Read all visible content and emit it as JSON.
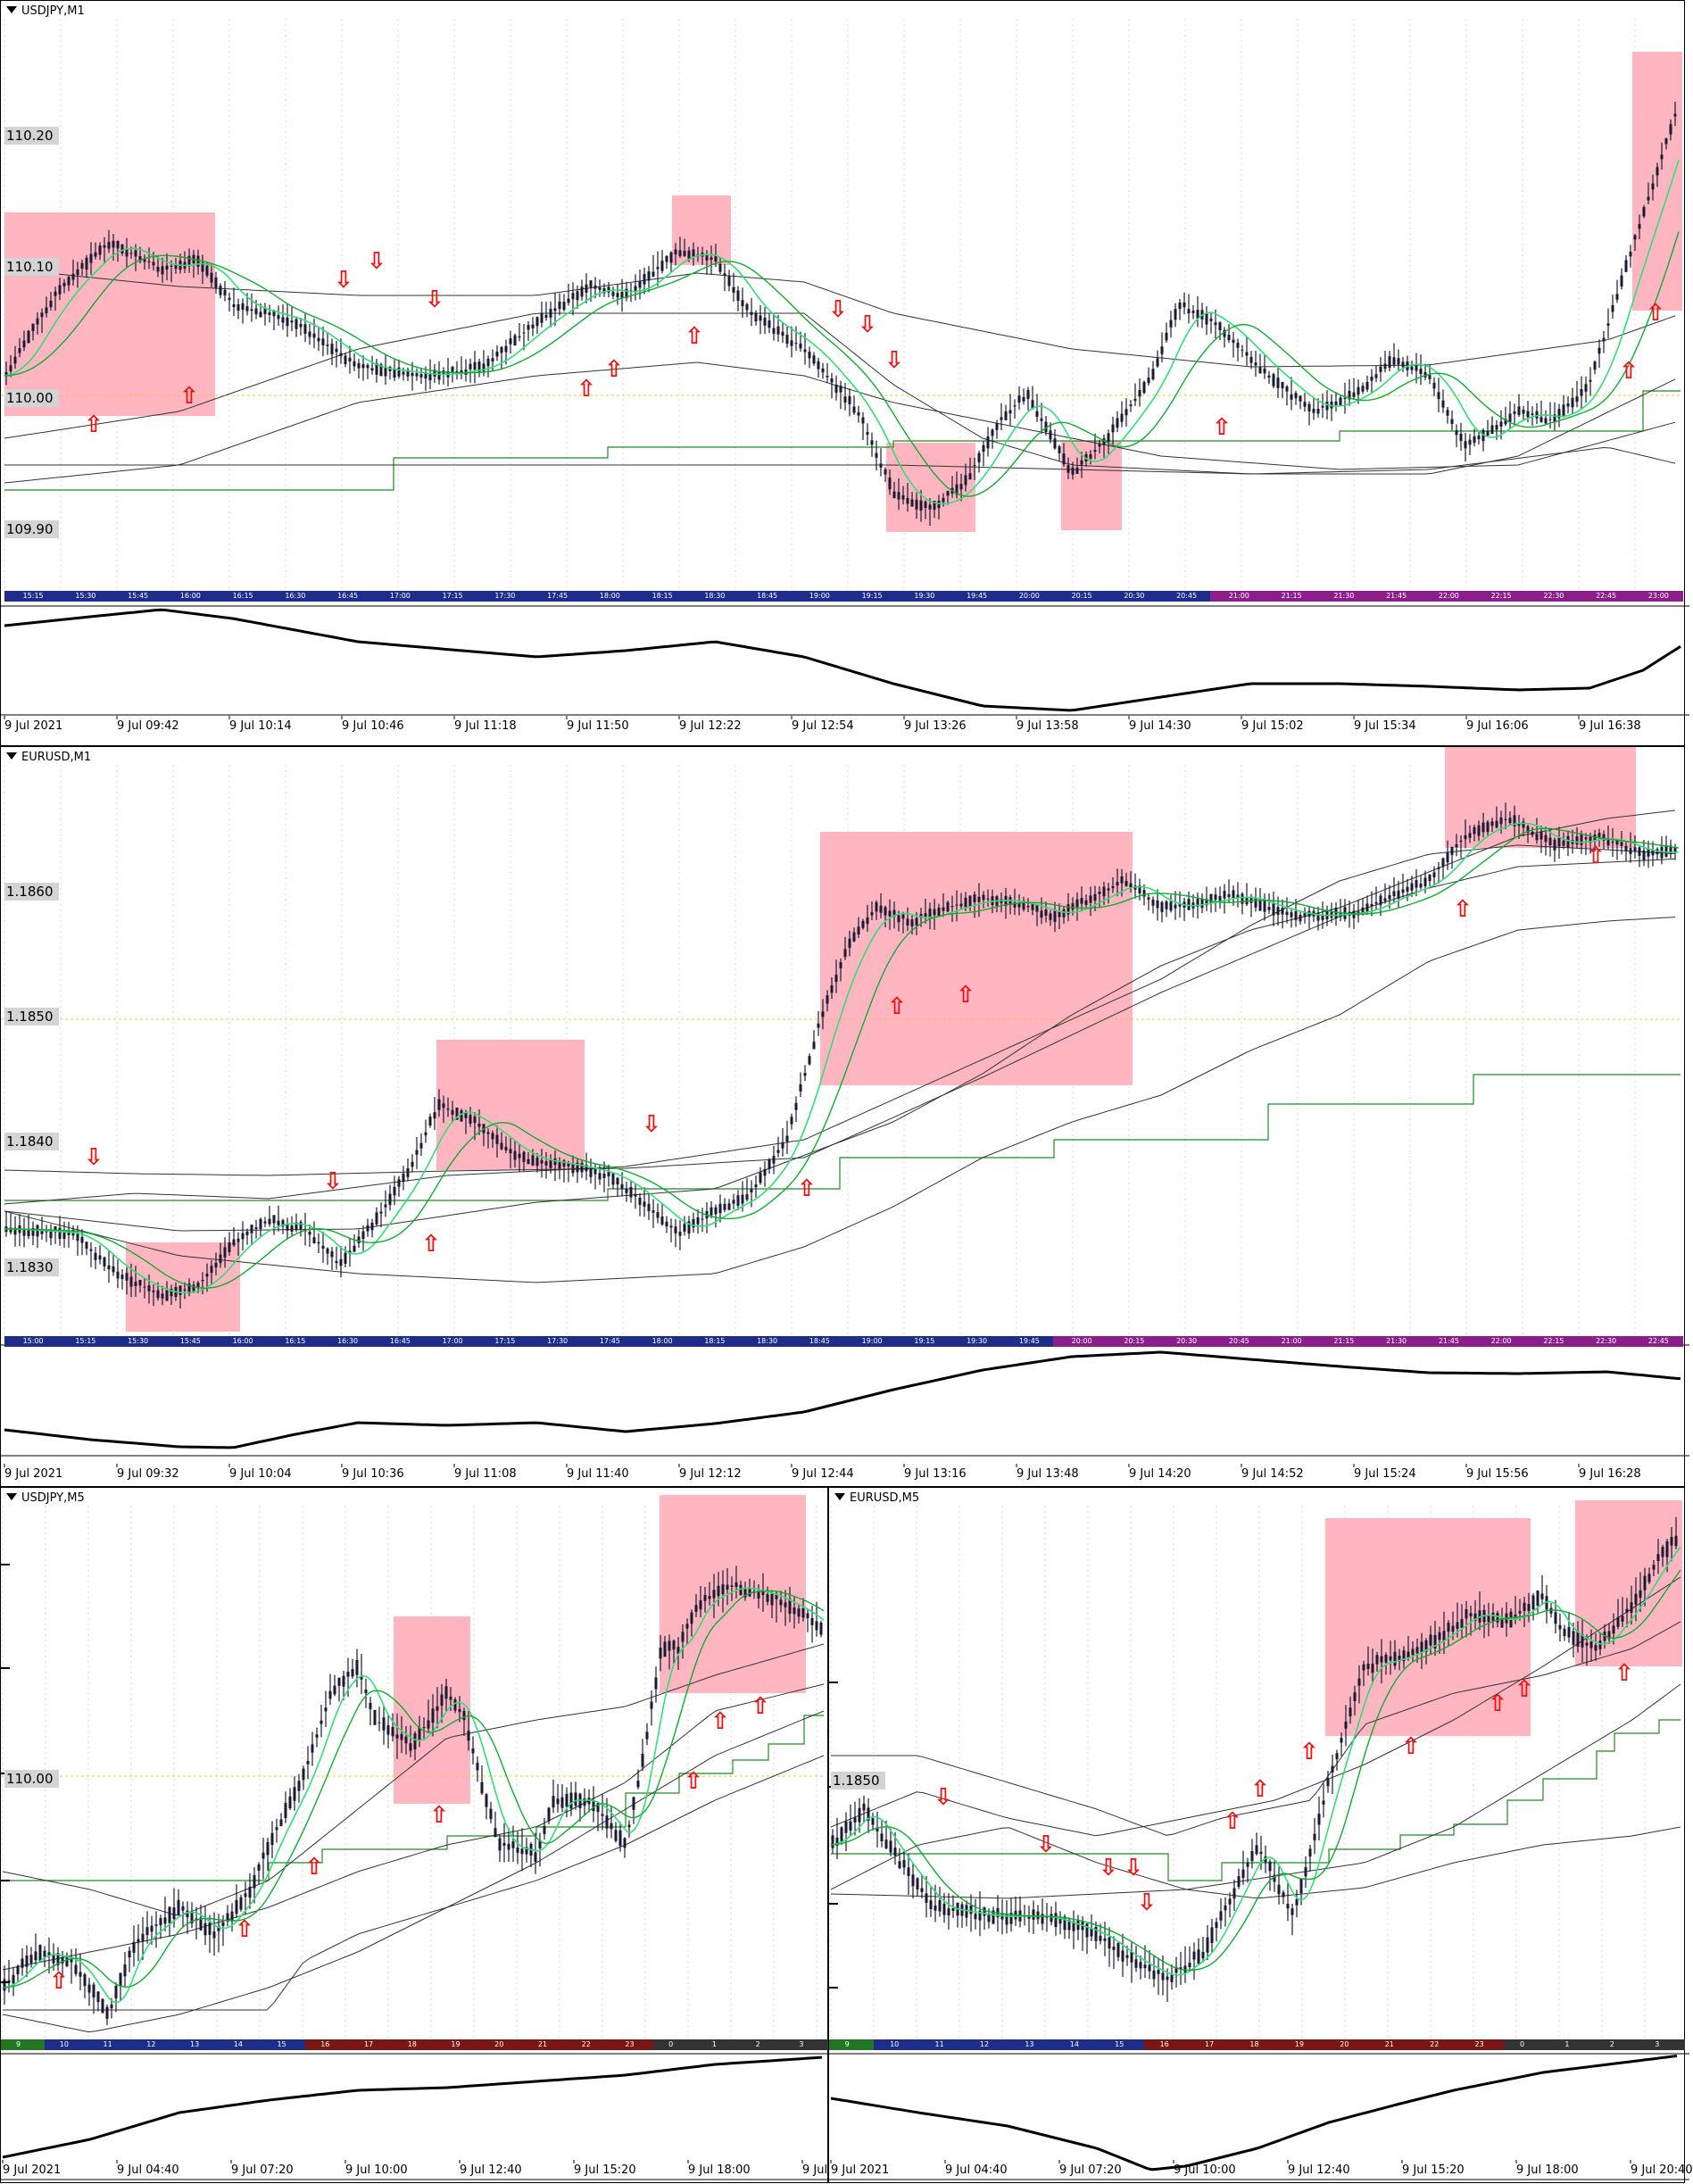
{
  "panels": [
    {
      "title": "USDJPY,M1",
      "price_labels": [
        "110.20",
        "110.10",
        "110.00",
        "109.90"
      ],
      "hour_ticks": [
        "15:15",
        "15:30",
        "15:45",
        "16:00",
        "16:15",
        "16:30",
        "16:45",
        "17:00",
        "17:15",
        "17:30",
        "17:45",
        "18:00",
        "18:15",
        "18:30",
        "18:45",
        "19:00",
        "19:15",
        "19:30",
        "19:45",
        "20:00",
        "20:15",
        "20:30",
        "20:45",
        "21:00",
        "21:15",
        "21:30",
        "21:45",
        "22:00",
        "22:15",
        "22:30",
        "22:45",
        "23:00"
      ],
      "x_labels": [
        "9 Jul 2021",
        "9 Jul 09:42",
        "9 Jul 10:14",
        "9 Jul 10:46",
        "9 Jul 11:18",
        "9 Jul 11:50",
        "9 Jul 12:22",
        "9 Jul 12:54",
        "9 Jul 13:26",
        "9 Jul 13:58",
        "9 Jul 14:30",
        "9 Jul 15:02",
        "9 Jul 15:34",
        "9 Jul 16:06",
        "9 Jul 16:38"
      ]
    },
    {
      "title": "EURUSD,M1",
      "price_labels": [
        "1.1860",
        "1.1850",
        "1.1840",
        "1.1830"
      ],
      "hour_ticks": [
        "15:00",
        "15:15",
        "15:30",
        "15:45",
        "16:00",
        "16:15",
        "16:30",
        "16:45",
        "17:00",
        "17:15",
        "17:30",
        "17:45",
        "18:00",
        "18:15",
        "18:30",
        "18:45",
        "19:00",
        "19:15",
        "19:30",
        "19:45",
        "20:00",
        "20:15",
        "20:30",
        "20:45",
        "21:00",
        "21:15",
        "21:30",
        "21:45",
        "22:00",
        "22:15",
        "22:30",
        "22:45"
      ],
      "x_labels": [
        "9 Jul 2021",
        "9 Jul 09:32",
        "9 Jul 10:04",
        "9 Jul 10:36",
        "9 Jul 11:08",
        "9 Jul 11:40",
        "9 Jul 12:12",
        "9 Jul 12:44",
        "9 Jul 13:16",
        "9 Jul 13:48",
        "9 Jul 14:20",
        "9 Jul 14:52",
        "9 Jul 15:24",
        "9 Jul 15:56",
        "9 Jul 16:28"
      ]
    },
    {
      "title": "USDJPY,M5",
      "price_labels": [
        "110.00"
      ],
      "hour_ticks": [
        "9",
        "10",
        "11",
        "12",
        "13",
        "14",
        "15",
        "16",
        "17",
        "18",
        "19",
        "20",
        "21",
        "22",
        "23",
        "0",
        "1",
        "2",
        "3"
      ],
      "x_labels": [
        "9 Jul 2021",
        "9 Jul 04:40",
        "9 Jul 07:20",
        "9 Jul 10:00",
        "9 Jul 12:40",
        "9 Jul 15:20",
        "9 Jul 18:00",
        "9 Jul"
      ]
    },
    {
      "title": "EURUSD,M5",
      "price_labels": [
        "1.1850"
      ],
      "hour_ticks": [
        "9",
        "10",
        "11",
        "12",
        "13",
        "14",
        "15",
        "16",
        "17",
        "18",
        "19",
        "20",
        "21",
        "22",
        "23",
        "0",
        "1",
        "2",
        "3"
      ],
      "x_labels": [
        "9 Jul 2021",
        "9 Jul 04:40",
        "9 Jul 07:20",
        "9 Jul 10:00",
        "9 Jul 12:40",
        "9 Jul 15:20",
        "9 Jul 18:00",
        "9 Jul 20:40"
      ]
    }
  ],
  "colors": {
    "highlight": "#ffb6c1",
    "candle": "#1a1a33",
    "fast_ma": "#33dd77",
    "slow_ma": "#11aa33",
    "band": "#333333",
    "step_line": "#228822",
    "arrow": "#ee1111",
    "dotted_level": "#f5c542",
    "timebar_blue": "#1f2d8a",
    "timebar_purple": "#8a1f8a"
  },
  "arrow_icons": {
    "up": "⇧",
    "down": "⇩"
  }
}
